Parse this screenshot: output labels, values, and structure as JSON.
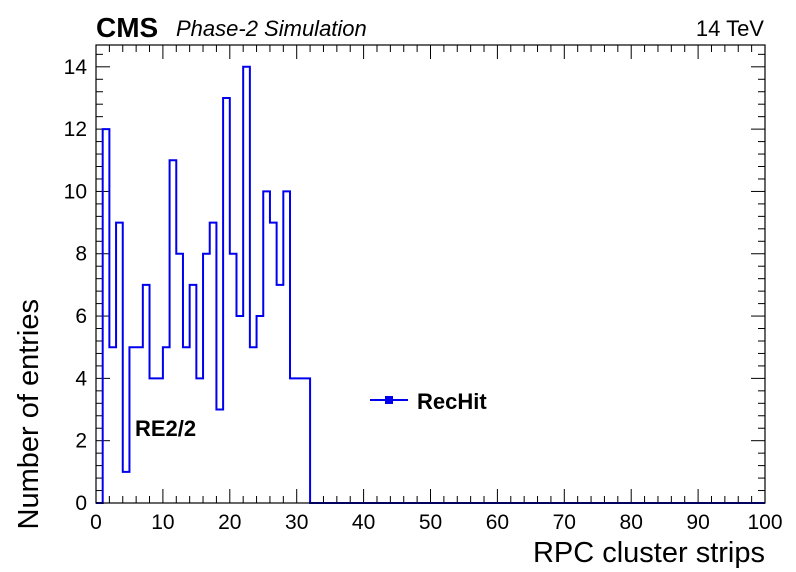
{
  "header": {
    "experiment": "CMS",
    "status": "Phase-2 Simulation",
    "energy": "14 TeV"
  },
  "annotation": "RE2/2",
  "chart_data": {
    "type": "histogram",
    "xlabel": "RPC cluster strips",
    "ylabel": "Number of entries",
    "xlim": [
      0,
      100
    ],
    "ylim": [
      0,
      14.7
    ],
    "xticks": [
      0,
      10,
      20,
      30,
      40,
      50,
      60,
      70,
      80,
      90,
      100
    ],
    "yticks": [
      0,
      2,
      4,
      6,
      8,
      10,
      12,
      14
    ],
    "bin_width": 1,
    "series": [
      {
        "name": "RecHit",
        "color": "#0000ee",
        "marker": "square",
        "bin_low_edges": [
          0,
          1,
          2,
          3,
          4,
          5,
          6,
          7,
          8,
          9,
          10,
          11,
          12,
          13,
          14,
          15,
          16,
          17,
          18,
          19,
          20,
          21,
          22,
          23,
          24,
          25,
          26,
          27,
          28,
          29,
          30,
          31
        ],
        "values": [
          0,
          12,
          5,
          9,
          1,
          5,
          5,
          7,
          4,
          4,
          5,
          11,
          8,
          5,
          7,
          4,
          8,
          9,
          3,
          13,
          8,
          6,
          14,
          5,
          6,
          10,
          9,
          7,
          10,
          4,
          4,
          4
        ]
      }
    ],
    "legend_position": "center-right",
    "grid": false
  }
}
